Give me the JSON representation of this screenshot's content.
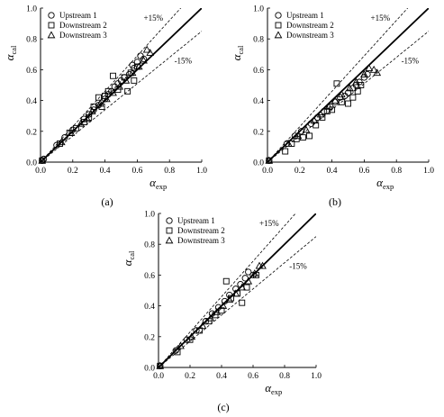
{
  "chart_data": [
    {
      "type": "scatter",
      "panel_label": "(a)",
      "xlabel": "α",
      "xlabel_sub": "exp",
      "ylabel": "α",
      "ylabel_sub": "cal",
      "xlim": [
        0,
        1
      ],
      "ylim": [
        0,
        1
      ],
      "xticks": [
        "0.0",
        "0.2",
        "0.4",
        "0.6",
        "0.8",
        "1.0"
      ],
      "yticks": [
        "0.0",
        "0.2",
        "0.4",
        "0.6",
        "0.8",
        "1.0"
      ],
      "grid": false,
      "legend_position": "top-left",
      "band_labels": {
        "upper": "+15%",
        "lower": "-15%"
      },
      "reference_lines": {
        "unity": 1.0,
        "upper": 1.15,
        "lower": 0.85
      },
      "series": [
        {
          "name": "Upstream 1",
          "marker": "circle",
          "points": [
            [
              0.01,
              0.01
            ],
            [
              0.02,
              0.02
            ],
            [
              0.1,
              0.11
            ],
            [
              0.15,
              0.16
            ],
            [
              0.2,
              0.21
            ],
            [
              0.27,
              0.28
            ],
            [
              0.3,
              0.31
            ],
            [
              0.33,
              0.34
            ],
            [
              0.36,
              0.37
            ],
            [
              0.4,
              0.41
            ],
            [
              0.42,
              0.44
            ],
            [
              0.44,
              0.46
            ],
            [
              0.46,
              0.49
            ],
            [
              0.48,
              0.51
            ],
            [
              0.5,
              0.53
            ],
            [
              0.52,
              0.55
            ],
            [
              0.55,
              0.57
            ],
            [
              0.57,
              0.63
            ],
            [
              0.58,
              0.61
            ],
            [
              0.6,
              0.65
            ],
            [
              0.62,
              0.69
            ],
            [
              0.64,
              0.67
            ]
          ]
        },
        {
          "name": "Downstream 2",
          "marker": "square",
          "points": [
            [
              0.01,
              0.01
            ],
            [
              0.12,
              0.12
            ],
            [
              0.18,
              0.19
            ],
            [
              0.22,
              0.22
            ],
            [
              0.27,
              0.26
            ],
            [
              0.3,
              0.29
            ],
            [
              0.33,
              0.36
            ],
            [
              0.36,
              0.42
            ],
            [
              0.38,
              0.36
            ],
            [
              0.4,
              0.43
            ],
            [
              0.42,
              0.46
            ],
            [
              0.45,
              0.56
            ],
            [
              0.48,
              0.47
            ],
            [
              0.52,
              0.55
            ],
            [
              0.54,
              0.46
            ],
            [
              0.56,
              0.58
            ],
            [
              0.58,
              0.53
            ],
            [
              0.6,
              0.62
            ]
          ]
        },
        {
          "name": "Downstream 3",
          "marker": "triangle",
          "points": [
            [
              0.01,
              0.01
            ],
            [
              0.13,
              0.13
            ],
            [
              0.19,
              0.19
            ],
            [
              0.25,
              0.25
            ],
            [
              0.29,
              0.28
            ],
            [
              0.32,
              0.33
            ],
            [
              0.37,
              0.38
            ],
            [
              0.41,
              0.41
            ],
            [
              0.45,
              0.45
            ],
            [
              0.49,
              0.49
            ],
            [
              0.53,
              0.53
            ],
            [
              0.57,
              0.58
            ],
            [
              0.61,
              0.62
            ],
            [
              0.64,
              0.66
            ],
            [
              0.66,
              0.73
            ],
            [
              0.68,
              0.71
            ]
          ]
        }
      ]
    },
    {
      "type": "scatter",
      "panel_label": "(b)",
      "xlabel": "α",
      "xlabel_sub": "exp",
      "ylabel": "α",
      "ylabel_sub": "cal",
      "xlim": [
        0,
        1
      ],
      "ylim": [
        0,
        1
      ],
      "xticks": [
        "0.0",
        "0.2",
        "0.4",
        "0.6",
        "0.8",
        "1.0"
      ],
      "yticks": [
        "0.0",
        "0.2",
        "0.4",
        "0.6",
        "0.8",
        "1.0"
      ],
      "grid": false,
      "legend_position": "top-left",
      "band_labels": {
        "upper": "+15%",
        "lower": "-15%"
      },
      "reference_lines": {
        "unity": 1.0,
        "upper": 1.15,
        "lower": 0.85
      },
      "series": [
        {
          "name": "Upstream 1",
          "marker": "circle",
          "points": [
            [
              0.01,
              0.01
            ],
            [
              0.12,
              0.12
            ],
            [
              0.17,
              0.17
            ],
            [
              0.21,
              0.2
            ],
            [
              0.27,
              0.25
            ],
            [
              0.31,
              0.29
            ],
            [
              0.35,
              0.33
            ],
            [
              0.39,
              0.36
            ],
            [
              0.42,
              0.39
            ],
            [
              0.45,
              0.42
            ],
            [
              0.48,
              0.43
            ],
            [
              0.5,
              0.45
            ],
            [
              0.53,
              0.48
            ],
            [
              0.55,
              0.5
            ],
            [
              0.57,
              0.52
            ],
            [
              0.6,
              0.55
            ],
            [
              0.62,
              0.57
            ]
          ]
        },
        {
          "name": "Downstream 2",
          "marker": "square",
          "points": [
            [
              0.01,
              0.01
            ],
            [
              0.11,
              0.07
            ],
            [
              0.15,
              0.12
            ],
            [
              0.18,
              0.15
            ],
            [
              0.22,
              0.16
            ],
            [
              0.26,
              0.17
            ],
            [
              0.3,
              0.24
            ],
            [
              0.34,
              0.29
            ],
            [
              0.37,
              0.33
            ],
            [
              0.4,
              0.34
            ],
            [
              0.43,
              0.51
            ],
            [
              0.46,
              0.39
            ],
            [
              0.5,
              0.38
            ],
            [
              0.53,
              0.42
            ],
            [
              0.56,
              0.46
            ],
            [
              0.58,
              0.5
            ]
          ]
        },
        {
          "name": "Downstream 3",
          "marker": "triangle",
          "points": [
            [
              0.01,
              0.01
            ],
            [
              0.13,
              0.12
            ],
            [
              0.19,
              0.17
            ],
            [
              0.24,
              0.21
            ],
            [
              0.29,
              0.27
            ],
            [
              0.33,
              0.31
            ],
            [
              0.38,
              0.36
            ],
            [
              0.42,
              0.4
            ],
            [
              0.46,
              0.44
            ],
            [
              0.51,
              0.48
            ],
            [
              0.55,
              0.52
            ],
            [
              0.6,
              0.57
            ],
            [
              0.63,
              0.61
            ],
            [
              0.66,
              0.6
            ],
            [
              0.68,
              0.58
            ]
          ]
        }
      ]
    },
    {
      "type": "scatter",
      "panel_label": "(c)",
      "xlabel": "α",
      "xlabel_sub": "exp",
      "ylabel": "α",
      "ylabel_sub": "cal",
      "xlim": [
        0,
        1
      ],
      "ylim": [
        0,
        1
      ],
      "xticks": [
        "0.0",
        "0.2",
        "0.4",
        "0.6",
        "0.8",
        "1.0"
      ],
      "yticks": [
        "0.0",
        "0.2",
        "0.4",
        "0.6",
        "0.8",
        "1.0"
      ],
      "grid": false,
      "legend_position": "top-left",
      "band_labels": {
        "upper": "+15%",
        "lower": "-15%"
      },
      "reference_lines": {
        "unity": 1.0,
        "upper": 1.15,
        "lower": 0.85
      },
      "series": [
        {
          "name": "Upstream 1",
          "marker": "circle",
          "points": [
            [
              0.01,
              0.01
            ],
            [
              0.11,
              0.11
            ],
            [
              0.18,
              0.18
            ],
            [
              0.24,
              0.24
            ],
            [
              0.3,
              0.3
            ],
            [
              0.34,
              0.35
            ],
            [
              0.38,
              0.39
            ],
            [
              0.42,
              0.43
            ],
            [
              0.45,
              0.47
            ],
            [
              0.49,
              0.51
            ],
            [
              0.52,
              0.54
            ],
            [
              0.55,
              0.58
            ],
            [
              0.57,
              0.62
            ],
            [
              0.6,
              0.6
            ]
          ]
        },
        {
          "name": "Downstream 2",
          "marker": "square",
          "points": [
            [
              0.01,
              0.01
            ],
            [
              0.12,
              0.1
            ],
            [
              0.2,
              0.18
            ],
            [
              0.26,
              0.24
            ],
            [
              0.32,
              0.3
            ],
            [
              0.36,
              0.34
            ],
            [
              0.4,
              0.37
            ],
            [
              0.43,
              0.56
            ],
            [
              0.46,
              0.45
            ],
            [
              0.5,
              0.48
            ],
            [
              0.53,
              0.42
            ],
            [
              0.56,
              0.52
            ],
            [
              0.62,
              0.6
            ]
          ]
        },
        {
          "name": "Downstream 3",
          "marker": "triangle",
          "points": [
            [
              0.01,
              0.01
            ],
            [
              0.14,
              0.14
            ],
            [
              0.21,
              0.2
            ],
            [
              0.28,
              0.27
            ],
            [
              0.33,
              0.32
            ],
            [
              0.37,
              0.36
            ],
            [
              0.41,
              0.4
            ],
            [
              0.45,
              0.44
            ],
            [
              0.49,
              0.48
            ],
            [
              0.53,
              0.52
            ],
            [
              0.57,
              0.56
            ],
            [
              0.61,
              0.61
            ],
            [
              0.64,
              0.66
            ],
            [
              0.66,
              0.66
            ]
          ]
        }
      ]
    }
  ]
}
